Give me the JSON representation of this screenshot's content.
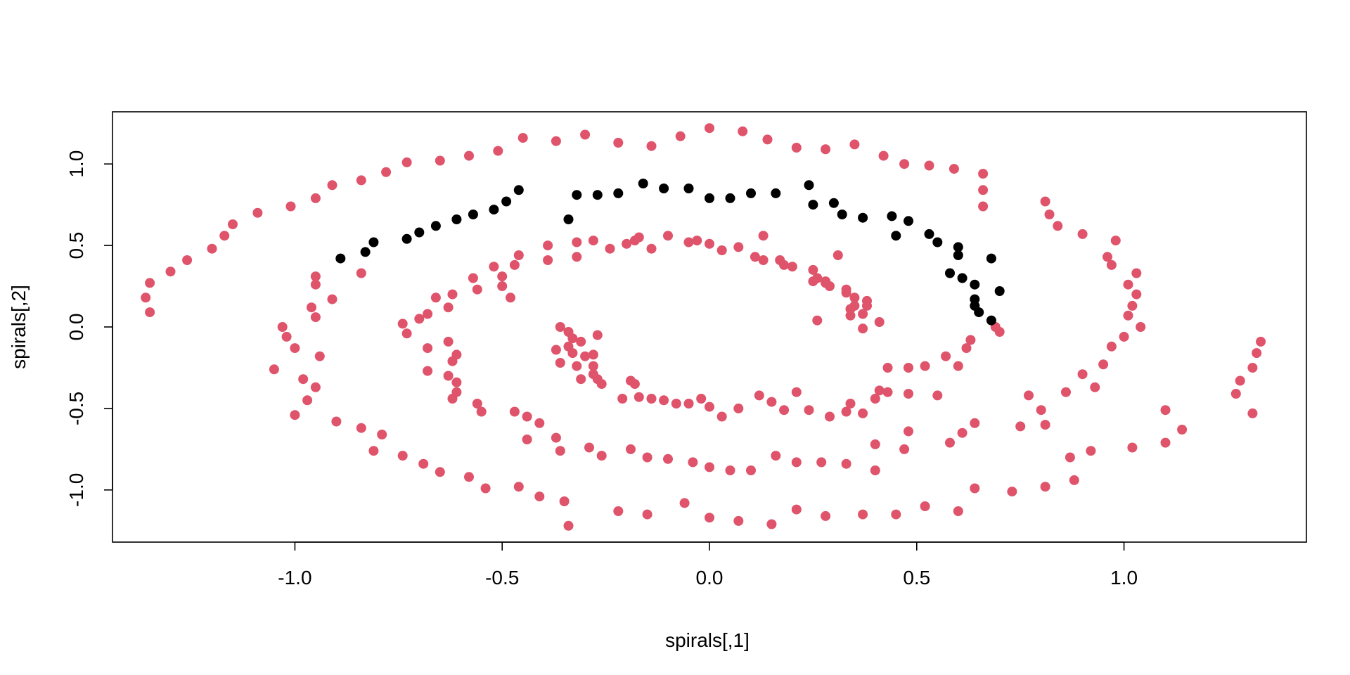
{
  "chart_data": {
    "type": "scatter",
    "title": "",
    "xlabel": "spirals[,1]",
    "ylabel": "spirals[,2]",
    "xlim": [
      -1.44,
      1.44
    ],
    "ylim": [
      -1.32,
      1.32
    ],
    "x_ticks": [
      -1.0,
      -0.5,
      0.0,
      0.5,
      1.0
    ],
    "x_tick_labels": [
      "-1.0",
      "-0.5",
      "0.0",
      "0.5",
      "1.0"
    ],
    "y_ticks": [
      -1.0,
      -0.5,
      0.0,
      0.5,
      1.0
    ],
    "y_tick_labels": [
      "-1.0",
      "-0.5",
      "0.0",
      "0.5",
      "1.0"
    ],
    "grid": false,
    "legend": "none",
    "colors": {
      "red": "#DF536B",
      "black": "#000000"
    },
    "series": [
      {
        "color": "red",
        "points": [
          [
            -1.36,
            0.18
          ],
          [
            -1.35,
            0.09
          ],
          [
            -1.35,
            0.27
          ],
          [
            -1.3,
            0.34
          ],
          [
            -1.26,
            0.41
          ],
          [
            -1.2,
            0.48
          ],
          [
            -1.17,
            0.56
          ],
          [
            -1.15,
            0.63
          ],
          [
            -1.09,
            0.7
          ],
          [
            -1.01,
            0.74
          ],
          [
            -0.95,
            0.79
          ],
          [
            -0.91,
            0.87
          ],
          [
            -0.84,
            0.9
          ],
          [
            -0.78,
            0.95
          ],
          [
            -0.73,
            1.01
          ],
          [
            -0.65,
            1.02
          ],
          [
            -0.58,
            1.05
          ],
          [
            -0.51,
            1.08
          ],
          [
            -0.45,
            1.16
          ],
          [
            -0.37,
            1.14
          ],
          [
            -0.3,
            1.18
          ],
          [
            -0.22,
            1.13
          ],
          [
            -0.14,
            1.11
          ],
          [
            -0.07,
            1.17
          ],
          [
            0.0,
            1.22
          ],
          [
            0.08,
            1.2
          ],
          [
            0.14,
            1.15
          ],
          [
            0.21,
            1.1
          ],
          [
            0.28,
            1.09
          ],
          [
            0.35,
            1.12
          ],
          [
            0.42,
            1.05
          ],
          [
            0.47,
            1.0
          ],
          [
            0.53,
            0.99
          ],
          [
            0.59,
            0.97
          ],
          [
            0.66,
            0.94
          ],
          [
            0.66,
            0.84
          ],
          [
            0.66,
            0.74
          ],
          [
            -0.84,
            0.33
          ],
          [
            -0.91,
            0.17
          ],
          [
            -0.95,
            0.06
          ],
          [
            -0.96,
            0.12
          ],
          [
            -0.95,
            0.26
          ],
          [
            -0.95,
            0.31
          ],
          [
            -1.03,
            0.0
          ],
          [
            -1.02,
            -0.06
          ],
          [
            -1.0,
            -0.13
          ],
          [
            -1.05,
            -0.26
          ],
          [
            -0.98,
            -0.32
          ],
          [
            -0.94,
            -0.18
          ],
          [
            -0.95,
            -0.37
          ],
          [
            -0.97,
            -0.45
          ],
          [
            -1.0,
            -0.54
          ],
          [
            -0.9,
            -0.58
          ],
          [
            -0.84,
            -0.62
          ],
          [
            -0.81,
            -0.76
          ],
          [
            -0.79,
            -0.66
          ],
          [
            -0.74,
            -0.79
          ],
          [
            -0.69,
            -0.84
          ],
          [
            -0.65,
            -0.89
          ],
          [
            -0.58,
            -0.92
          ],
          [
            -0.54,
            -0.99
          ],
          [
            -0.46,
            -0.98
          ],
          [
            -0.41,
            -1.04
          ],
          [
            -0.35,
            -1.07
          ],
          [
            -0.34,
            -1.22
          ],
          [
            -0.22,
            -1.13
          ],
          [
            -0.15,
            -1.15
          ],
          [
            -0.06,
            -1.08
          ],
          [
            0.0,
            -1.17
          ],
          [
            0.07,
            -1.19
          ],
          [
            0.15,
            -1.21
          ],
          [
            0.21,
            -1.12
          ],
          [
            0.28,
            -1.16
          ],
          [
            0.37,
            -1.15
          ],
          [
            0.45,
            -1.15
          ],
          [
            0.52,
            -1.1
          ],
          [
            0.6,
            -1.13
          ],
          [
            0.64,
            -0.99
          ],
          [
            0.73,
            -1.01
          ],
          [
            0.81,
            -0.98
          ],
          [
            0.88,
            -0.94
          ],
          [
            0.87,
            -0.8
          ],
          [
            0.92,
            -0.76
          ],
          [
            1.02,
            -0.74
          ],
          [
            1.1,
            -0.71
          ],
          [
            1.14,
            -0.63
          ],
          [
            1.1,
            -0.51
          ],
          [
            1.27,
            -0.41
          ],
          [
            1.28,
            -0.33
          ],
          [
            1.31,
            -0.25
          ],
          [
            1.32,
            -0.16
          ],
          [
            1.33,
            -0.09
          ],
          [
            1.31,
            -0.53
          ],
          [
            0.75,
            -0.61
          ],
          [
            0.81,
            -0.6
          ],
          [
            0.8,
            -0.51
          ],
          [
            0.77,
            -0.42
          ],
          [
            0.86,
            -0.4
          ],
          [
            0.9,
            -0.29
          ],
          [
            0.93,
            -0.37
          ],
          [
            0.95,
            -0.23
          ],
          [
            0.97,
            -0.12
          ],
          [
            1.0,
            -0.06
          ],
          [
            1.04,
            0.0
          ],
          [
            1.01,
            0.07
          ],
          [
            1.02,
            0.13
          ],
          [
            1.03,
            0.2
          ],
          [
            1.01,
            0.26
          ],
          [
            1.03,
            0.33
          ],
          [
            0.97,
            0.38
          ],
          [
            0.96,
            0.43
          ],
          [
            0.98,
            0.53
          ],
          [
            0.9,
            0.57
          ],
          [
            0.84,
            0.62
          ],
          [
            0.82,
            0.69
          ],
          [
            0.81,
            0.77
          ],
          [
            0.7,
            -0.03
          ],
          [
            0.69,
            0.0
          ],
          [
            0.63,
            -0.08
          ],
          [
            0.62,
            -0.13
          ],
          [
            0.6,
            -0.24
          ],
          [
            0.57,
            -0.18
          ],
          [
            0.52,
            -0.24
          ],
          [
            0.48,
            -0.25
          ],
          [
            0.43,
            -0.25
          ],
          [
            0.41,
            -0.39
          ],
          [
            0.4,
            -0.44
          ],
          [
            0.37,
            -0.53
          ],
          [
            0.34,
            -0.47
          ],
          [
            0.33,
            -0.52
          ],
          [
            0.29,
            -0.55
          ],
          [
            0.24,
            -0.51
          ],
          [
            0.21,
            -0.4
          ],
          [
            0.18,
            -0.51
          ],
          [
            0.15,
            -0.46
          ],
          [
            0.12,
            -0.42
          ],
          [
            0.07,
            -0.5
          ],
          [
            0.03,
            -0.55
          ],
          [
            0.0,
            -0.49
          ],
          [
            -0.02,
            -0.44
          ],
          [
            -0.05,
            -0.47
          ],
          [
            -0.08,
            -0.47
          ],
          [
            -0.11,
            -0.45
          ],
          [
            -0.14,
            -0.44
          ],
          [
            -0.17,
            -0.43
          ],
          [
            -0.21,
            -0.44
          ],
          [
            -0.18,
            -0.35
          ],
          [
            -0.19,
            -0.33
          ],
          [
            -0.26,
            -0.35
          ],
          [
            -0.27,
            -0.32
          ],
          [
            -0.28,
            -0.29
          ],
          [
            -0.28,
            -0.24
          ],
          [
            -0.28,
            -0.17
          ],
          [
            -0.27,
            -0.05
          ],
          [
            -0.31,
            -0.09
          ],
          [
            -0.33,
            -0.07
          ],
          [
            -0.34,
            -0.03
          ],
          [
            -0.36,
            0.0
          ],
          [
            -0.34,
            -0.12
          ],
          [
            -0.33,
            -0.16
          ],
          [
            -0.3,
            -0.18
          ],
          [
            -0.32,
            -0.24
          ],
          [
            -0.36,
            -0.22
          ],
          [
            -0.37,
            -0.14
          ],
          [
            -0.31,
            -0.32
          ],
          [
            -0.48,
            0.18
          ],
          [
            -0.5,
            0.25
          ],
          [
            -0.5,
            0.31
          ],
          [
            -0.52,
            0.37
          ],
          [
            -0.56,
            0.23
          ],
          [
            -0.57,
            0.3
          ],
          [
            -0.62,
            0.2
          ],
          [
            -0.63,
            0.12
          ],
          [
            -0.66,
            0.18
          ],
          [
            -0.68,
            0.08
          ],
          [
            -0.7,
            0.05
          ],
          [
            -0.74,
            0.02
          ],
          [
            -0.73,
            -0.04
          ],
          [
            -0.68,
            -0.13
          ],
          [
            -0.68,
            -0.27
          ],
          [
            -0.63,
            -0.09
          ],
          [
            -0.61,
            -0.17
          ],
          [
            -0.62,
            -0.21
          ],
          [
            -0.63,
            -0.3
          ],
          [
            -0.61,
            -0.34
          ],
          [
            -0.61,
            -0.4
          ],
          [
            -0.62,
            -0.44
          ],
          [
            -0.56,
            -0.47
          ],
          [
            -0.55,
            -0.52
          ],
          [
            -0.47,
            -0.52
          ],
          [
            -0.44,
            -0.55
          ],
          [
            -0.41,
            -0.59
          ],
          [
            -0.44,
            -0.69
          ],
          [
            -0.37,
            -0.68
          ],
          [
            -0.36,
            -0.76
          ],
          [
            -0.29,
            -0.74
          ],
          [
            -0.26,
            -0.79
          ],
          [
            -0.19,
            -0.75
          ],
          [
            -0.15,
            -0.8
          ],
          [
            -0.1,
            -0.81
          ],
          [
            -0.04,
            -0.83
          ],
          [
            0.0,
            -0.86
          ],
          [
            0.05,
            -0.88
          ],
          [
            0.1,
            -0.88
          ],
          [
            0.16,
            -0.79
          ],
          [
            0.21,
            -0.83
          ],
          [
            0.27,
            -0.83
          ],
          [
            0.33,
            -0.84
          ],
          [
            0.4,
            -0.88
          ],
          [
            0.4,
            -0.72
          ],
          [
            0.47,
            -0.75
          ],
          [
            0.48,
            -0.64
          ],
          [
            0.58,
            -0.71
          ],
          [
            0.61,
            -0.65
          ],
          [
            0.64,
            -0.59
          ],
          [
            0.48,
            -0.41
          ],
          [
            0.43,
            -0.4
          ],
          [
            0.55,
            -0.42
          ],
          [
            -0.47,
            0.38
          ],
          [
            -0.46,
            0.44
          ],
          [
            -0.39,
            0.41
          ],
          [
            -0.39,
            0.5
          ],
          [
            -0.32,
            0.43
          ],
          [
            -0.32,
            0.52
          ],
          [
            -0.28,
            0.53
          ],
          [
            -0.24,
            0.48
          ],
          [
            -0.2,
            0.51
          ],
          [
            -0.18,
            0.53
          ],
          [
            -0.17,
            0.55
          ],
          [
            -0.14,
            0.48
          ],
          [
            -0.1,
            0.56
          ],
          [
            -0.05,
            0.52
          ],
          [
            -0.03,
            0.53
          ],
          [
            0.0,
            0.51
          ],
          [
            0.03,
            0.47
          ],
          [
            0.07,
            0.49
          ],
          [
            0.11,
            0.43
          ],
          [
            0.13,
            0.41
          ],
          [
            0.13,
            0.56
          ],
          [
            0.17,
            0.41
          ],
          [
            0.18,
            0.38
          ],
          [
            0.2,
            0.37
          ],
          [
            0.25,
            0.35
          ],
          [
            0.26,
            0.3
          ],
          [
            0.25,
            0.28
          ],
          [
            0.29,
            0.25
          ],
          [
            0.28,
            0.27
          ],
          [
            0.33,
            0.23
          ],
          [
            0.33,
            0.21
          ],
          [
            0.35,
            0.18
          ],
          [
            0.35,
            0.13
          ],
          [
            0.34,
            0.11
          ],
          [
            0.34,
            0.07
          ],
          [
            0.37,
            0.08
          ],
          [
            0.38,
            0.13
          ],
          [
            0.38,
            0.16
          ],
          [
            0.41,
            0.03
          ],
          [
            0.37,
            -0.01
          ],
          [
            0.31,
            0.44
          ],
          [
            0.28,
            0.28
          ],
          [
            0.26,
            0.04
          ]
        ]
      },
      {
        "color": "black",
        "points": [
          [
            -0.89,
            0.42
          ],
          [
            -0.83,
            0.46
          ],
          [
            -0.81,
            0.52
          ],
          [
            -0.73,
            0.54
          ],
          [
            -0.7,
            0.58
          ],
          [
            -0.66,
            0.62
          ],
          [
            -0.61,
            0.66
          ],
          [
            -0.57,
            0.69
          ],
          [
            -0.52,
            0.72
          ],
          [
            -0.49,
            0.77
          ],
          [
            -0.46,
            0.84
          ],
          [
            -0.34,
            0.66
          ],
          [
            -0.32,
            0.81
          ],
          [
            -0.27,
            0.81
          ],
          [
            -0.22,
            0.82
          ],
          [
            -0.16,
            0.88
          ],
          [
            -0.11,
            0.85
          ],
          [
            -0.05,
            0.85
          ],
          [
            0.0,
            0.79
          ],
          [
            0.05,
            0.79
          ],
          [
            0.1,
            0.82
          ],
          [
            0.16,
            0.82
          ],
          [
            0.24,
            0.87
          ],
          [
            0.25,
            0.75
          ],
          [
            0.3,
            0.76
          ],
          [
            0.32,
            0.69
          ],
          [
            0.37,
            0.67
          ],
          [
            0.44,
            0.68
          ],
          [
            0.48,
            0.65
          ],
          [
            0.45,
            0.56
          ],
          [
            0.53,
            0.57
          ],
          [
            0.55,
            0.52
          ],
          [
            0.6,
            0.49
          ],
          [
            0.6,
            0.44
          ],
          [
            0.58,
            0.33
          ],
          [
            0.61,
            0.3
          ],
          [
            0.64,
            0.26
          ],
          [
            0.64,
            0.17
          ],
          [
            0.64,
            0.13
          ],
          [
            0.65,
            0.09
          ],
          [
            0.68,
            0.04
          ],
          [
            0.7,
            0.22
          ],
          [
            0.68,
            0.42
          ]
        ]
      }
    ]
  }
}
